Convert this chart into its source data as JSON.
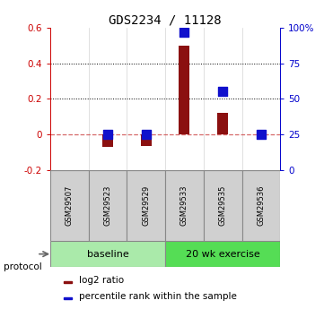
{
  "title": "GDS2234 / 11128",
  "samples": [
    "GSM29507",
    "GSM29523",
    "GSM29529",
    "GSM29533",
    "GSM29535",
    "GSM29536"
  ],
  "log2_ratio": [
    0.0,
    -0.07,
    -0.065,
    0.5,
    0.12,
    0.0
  ],
  "percentile_rank_pct": [
    null,
    25,
    25,
    97,
    55,
    25
  ],
  "left_ylim": [
    -0.2,
    0.6
  ],
  "right_ylim": [
    0,
    100
  ],
  "left_yticks": [
    -0.2,
    0.0,
    0.2,
    0.4,
    0.6
  ],
  "right_yticks": [
    0,
    25,
    50,
    75,
    100
  ],
  "right_yticklabels": [
    "0",
    "25",
    "50",
    "75",
    "100%"
  ],
  "left_ytick_labels": [
    "-0.2",
    "0",
    "0.2",
    "0.4",
    "0.6"
  ],
  "hline_dotted": [
    0.4,
    0.2
  ],
  "hline_dashed": 0.0,
  "bar_color": "#8B1010",
  "square_color": "#1010CC",
  "bar_width": 0.28,
  "square_size": 55,
  "groups": [
    {
      "label": "baseline",
      "start": 0,
      "end": 2,
      "color": "#AAEAAA"
    },
    {
      "label": "20 wk exercise",
      "start": 3,
      "end": 5,
      "color": "#55DD55"
    }
  ],
  "protocol_label": "protocol",
  "legend_bar_label": "log2 ratio",
  "legend_sq_label": "percentile rank within the sample",
  "tick_label_color_left": "#CC0000",
  "tick_label_color_right": "#0000CC",
  "sample_box_color": "#D0D0D0",
  "title_fontsize": 10,
  "axis_fontsize": 7.5,
  "legend_fontsize": 7.5
}
